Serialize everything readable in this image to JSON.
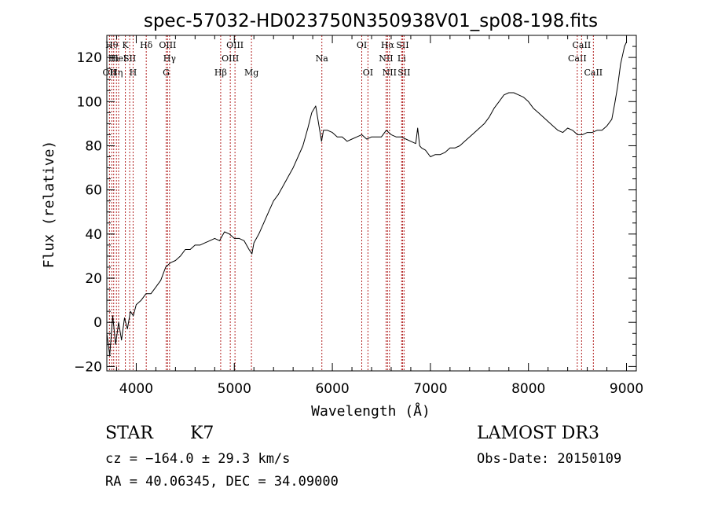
{
  "chart_data": {
    "type": "line",
    "title": "spec-57032-HD023750N350938V01_sp08-198.fits",
    "xlabel": "Wavelength (Å)",
    "ylabel": "Flux (relative)",
    "xlim": [
      3700,
      9100
    ],
    "ylim": [
      -22,
      130
    ],
    "xticks": [
      4000,
      5000,
      6000,
      7000,
      8000,
      9000
    ],
    "yticks": [
      -20,
      0,
      20,
      40,
      60,
      80,
      100,
      120
    ],
    "grid": false,
    "series": [
      {
        "color": "#000000",
        "x": [
          3700,
          3730,
          3760,
          3790,
          3820,
          3850,
          3880,
          3910,
          3940,
          3970,
          4000,
          4050,
          4100,
          4150,
          4200,
          4250,
          4300,
          4350,
          4400,
          4450,
          4500,
          4550,
          4600,
          4650,
          4700,
          4750,
          4800,
          4850,
          4900,
          4950,
          5000,
          5050,
          5100,
          5150,
          5180,
          5200,
          5250,
          5300,
          5350,
          5400,
          5450,
          5500,
          5550,
          5600,
          5650,
          5700,
          5750,
          5790,
          5830,
          5860,
          5890,
          5910,
          5950,
          6000,
          6050,
          6100,
          6150,
          6200,
          6250,
          6300,
          6350,
          6400,
          6450,
          6500,
          6550,
          6600,
          6650,
          6700,
          6750,
          6800,
          6850,
          6870,
          6890,
          6910,
          6950,
          7000,
          7050,
          7100,
          7150,
          7200,
          7250,
          7300,
          7350,
          7400,
          7450,
          7500,
          7550,
          7600,
          7650,
          7700,
          7750,
          7800,
          7850,
          7900,
          7950,
          8000,
          8050,
          8100,
          8150,
          8200,
          8250,
          8300,
          8350,
          8400,
          8450,
          8500,
          8550,
          8600,
          8650,
          8700,
          8750,
          8800,
          8850,
          8880,
          8910,
          8940,
          8960,
          8980,
          9000
        ],
        "y": [
          -5,
          -15,
          3,
          -10,
          0,
          -8,
          2,
          -3,
          5,
          3,
          8,
          10,
          13,
          13,
          16,
          19,
          25,
          27,
          28,
          30,
          33,
          33,
          35,
          35,
          36,
          37,
          38,
          37,
          41,
          40,
          38,
          38,
          37,
          33,
          31,
          36,
          40,
          45,
          50,
          55,
          58,
          62,
          66,
          70,
          75,
          80,
          88,
          95,
          98,
          90,
          82,
          87,
          87,
          86,
          84,
          84,
          82,
          83,
          84,
          85,
          83,
          84,
          84,
          84,
          87,
          85,
          84,
          84,
          83,
          82,
          81,
          88,
          80,
          79,
          78,
          75,
          76,
          76,
          77,
          79,
          79,
          80,
          82,
          84,
          86,
          88,
          90,
          93,
          97,
          100,
          103,
          104,
          104,
          103,
          102,
          100,
          97,
          95,
          93,
          91,
          89,
          87,
          86,
          88,
          87,
          85,
          85,
          86,
          86,
          87,
          87,
          89,
          92,
          99,
          107,
          117,
          121,
          125,
          127
        ]
      }
    ],
    "lines": [
      {
        "x": 3727,
        "label": "OII",
        "row": 3
      },
      {
        "x": 3750,
        "label": "Hθ",
        "row": 1
      },
      {
        "x": 3770,
        "label": "Hι",
        "row": 2
      },
      {
        "x": 3798,
        "label": "Hη",
        "row": 3
      },
      {
        "x": 3820,
        "label": "HeI",
        "row": 2
      },
      {
        "x": 3889,
        "label": "K",
        "row": 1
      },
      {
        "x": 3933,
        "label": "SII",
        "row": 2
      },
      {
        "x": 3968,
        "label": "H",
        "row": 3
      },
      {
        "x": 4102,
        "label": "Hδ",
        "row": 1
      },
      {
        "x": 4305,
        "label": "G",
        "row": 3
      },
      {
        "x": 4320,
        "label": "OIII",
        "row": 1
      },
      {
        "x": 4340,
        "label": "Hγ",
        "row": 2
      },
      {
        "x": 4861,
        "label": "Hβ",
        "row": 3
      },
      {
        "x": 4959,
        "label": "OIII",
        "row": 2
      },
      {
        "x": 5007,
        "label": "OIII",
        "row": 1
      },
      {
        "x": 5175,
        "label": "Mg",
        "row": 3
      },
      {
        "x": 5893,
        "label": "Na",
        "row": 2
      },
      {
        "x": 6300,
        "label": "OI",
        "row": 1
      },
      {
        "x": 6363,
        "label": "OI",
        "row": 3
      },
      {
        "x": 6548,
        "label": "NII",
        "row": 2
      },
      {
        "x": 6563,
        "label": "Hα",
        "row": 1
      },
      {
        "x": 6583,
        "label": "NII",
        "row": 3
      },
      {
        "x": 6707,
        "label": "Li",
        "row": 2
      },
      {
        "x": 6716,
        "label": "SII",
        "row": 1
      },
      {
        "x": 6731,
        "label": "SII",
        "row": 3
      },
      {
        "x": 8498,
        "label": "CaII",
        "row": 2
      },
      {
        "x": 8542,
        "label": "CaII",
        "row": 1
      },
      {
        "x": 8662,
        "label": "CaII",
        "row": 3
      }
    ]
  },
  "info": {
    "object_type": "STAR",
    "subclass": "K7",
    "redshift": "cz = −164.0 ± 29.3 km/s",
    "coords": "RA =  40.06345, DEC =  34.09000",
    "survey": "LAMOST DR3",
    "obs_date": "Obs-Date: 20150109"
  }
}
